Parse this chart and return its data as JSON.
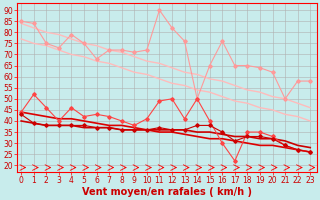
{
  "title": "",
  "xlabel": "Vent moyen/en rafales ( km/h )",
  "bg_color": "#c8ecec",
  "grid_color": "#b0b0b0",
  "x": [
    0,
    1,
    2,
    3,
    4,
    5,
    6,
    7,
    8,
    9,
    10,
    11,
    12,
    13,
    14,
    15,
    16,
    17,
    18,
    19,
    20,
    21,
    22,
    23
  ],
  "series": [
    {
      "name": "rafales_data",
      "color": "#ff9999",
      "lw": 0.8,
      "marker": "D",
      "ms": 1.8,
      "y": [
        85,
        84,
        75,
        73,
        79,
        75,
        68,
        72,
        72,
        71,
        72,
        90,
        82,
        76,
        50,
        65,
        76,
        65,
        65,
        64,
        62,
        50,
        58,
        58
      ]
    },
    {
      "name": "rafales_trend_upper",
      "color": "#ffbbbb",
      "lw": 1.0,
      "marker": null,
      "ms": 0,
      "y": [
        84,
        82,
        80,
        79,
        77,
        75,
        74,
        72,
        71,
        69,
        67,
        66,
        64,
        62,
        61,
        59,
        58,
        56,
        54,
        53,
        51,
        50,
        48,
        46
      ]
    },
    {
      "name": "rafales_trend_lower",
      "color": "#ffbbbb",
      "lw": 1.0,
      "marker": null,
      "ms": 0,
      "y": [
        77,
        75,
        74,
        72,
        70,
        69,
        67,
        66,
        64,
        62,
        61,
        59,
        57,
        56,
        54,
        53,
        51,
        49,
        48,
        46,
        45,
        43,
        42,
        40
      ]
    },
    {
      "name": "vent_data",
      "color": "#ff4444",
      "lw": 0.8,
      "marker": "D",
      "ms": 1.8,
      "y": [
        44,
        52,
        46,
        40,
        46,
        42,
        43,
        42,
        40,
        38,
        41,
        49,
        50,
        41,
        50,
        40,
        30,
        22,
        35,
        35,
        33,
        29,
        27,
        26
      ]
    },
    {
      "name": "vent_trend_upper",
      "color": "#dd0000",
      "lw": 1.2,
      "marker": null,
      "ms": 0,
      "y": [
        44,
        43,
        42,
        41,
        41,
        40,
        39,
        38,
        38,
        37,
        36,
        35,
        35,
        34,
        33,
        32,
        32,
        31,
        30,
        29,
        29,
        28,
        27,
        26
      ]
    },
    {
      "name": "vent_trend_lower",
      "color": "#cc0000",
      "lw": 1.2,
      "marker": null,
      "ms": 0,
      "y": [
        40,
        39,
        38,
        38,
        38,
        37,
        37,
        37,
        36,
        36,
        36,
        36,
        36,
        36,
        35,
        35,
        34,
        33,
        33,
        32,
        32,
        31,
        29,
        28
      ]
    },
    {
      "name": "vent_moy",
      "color": "#cc0000",
      "lw": 0.8,
      "marker": "D",
      "ms": 1.8,
      "y": [
        43,
        39,
        38,
        38,
        38,
        38,
        37,
        37,
        36,
        36,
        36,
        37,
        36,
        36,
        38,
        38,
        35,
        31,
        33,
        33,
        32,
        29,
        27,
        26
      ]
    }
  ],
  "ylim": [
    17,
    93
  ],
  "yticks": [
    20,
    25,
    30,
    35,
    40,
    45,
    50,
    55,
    60,
    65,
    70,
    75,
    80,
    85,
    90
  ],
  "xlim": [
    -0.3,
    23.5
  ],
  "xticks": [
    0,
    1,
    2,
    3,
    4,
    5,
    6,
    7,
    8,
    9,
    10,
    11,
    12,
    13,
    14,
    15,
    16,
    17,
    18,
    19,
    20,
    21,
    22,
    23
  ],
  "tick_color": "#ff0000",
  "label_color": "#cc0000",
  "axis_color": "#ff0000",
  "xlabel_fontsize": 7,
  "tick_fontsize": 5.5
}
